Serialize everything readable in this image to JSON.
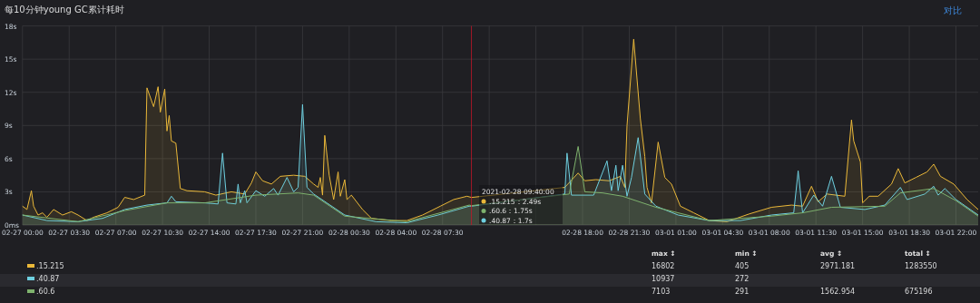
{
  "chart_data": {
    "type": "area",
    "title": "每10分钟young GC累计耗时",
    "xlim": [
      "2021-02-27T00:00",
      "2021-03-01T23:40"
    ],
    "ylim": [
      0,
      18
    ],
    "xticks": [
      {
        "value": "2021-02-27T00:00",
        "label": "02-27 00:00"
      },
      {
        "value": "2021-02-27T03:30",
        "label": "02-27 03:30"
      },
      {
        "value": "2021-02-27T07:00",
        "label": "02-27 07:00"
      },
      {
        "value": "2021-02-27T10:30",
        "label": "02-27 10:30"
      },
      {
        "value": "2021-02-27T14:00",
        "label": "02-27 14:00"
      },
      {
        "value": "2021-02-27T17:30",
        "label": "02-27 17:30"
      },
      {
        "value": "2021-02-27T21:00",
        "label": "02-27 21:00"
      },
      {
        "value": "2021-02-28T00:30",
        "label": "02-28 00:30"
      },
      {
        "value": "2021-02-28T04:00",
        "label": "02-28 04:00"
      },
      {
        "value": "2021-02-28T07:30",
        "label": "02-28 07:30"
      },
      {
        "value": "2021-02-28T11:00",
        "label": null
      },
      {
        "value": "2021-02-28T14:30",
        "label": null
      },
      {
        "value": "2021-02-28T18:00",
        "label": "02-28 18:00"
      },
      {
        "value": "2021-02-28T21:30",
        "label": "02-28 21:30"
      },
      {
        "value": "2021-03-01T01:00",
        "label": "03-01 01:00"
      },
      {
        "value": "2021-03-01T04:30",
        "label": "03-01 04:30"
      },
      {
        "value": "2021-03-01T08:00",
        "label": "03-01 08:00"
      },
      {
        "value": "2021-03-01T11:30",
        "label": "03-01 11:30"
      },
      {
        "value": "2021-03-01T15:00",
        "label": "03-01 15:00"
      },
      {
        "value": "2021-03-01T18:30",
        "label": "03-01 18:30"
      },
      {
        "value": "2021-03-01T22:00",
        "label": "03-01 22:00"
      }
    ],
    "yticks": [
      {
        "value": 0,
        "label": "0ms"
      },
      {
        "value": 3,
        "label": "3s"
      },
      {
        "value": 6,
        "label": "6s"
      },
      {
        "value": 9,
        "label": "9s"
      },
      {
        "value": 12,
        "label": "12s"
      },
      {
        "value": 15,
        "label": "15s"
      },
      {
        "value": 18,
        "label": "18s"
      }
    ],
    "grid": true,
    "legend": "bottom",
    "ref_lines": [
      {
        "axis": "x",
        "value": "2021-02-28T09:40",
        "color": "#c4162a"
      }
    ],
    "series": [
      {
        "name": ".15.215",
        "color": "#eab839",
        "x": [
          "2021-02-27T00:00",
          "2021-02-27T00:20",
          "2021-02-27T00:40",
          "2021-02-27T00:50",
          "2021-02-27T01:10",
          "2021-02-27T01:30",
          "2021-02-27T01:50",
          "2021-02-27T02:20",
          "2021-02-27T03:00",
          "2021-02-27T03:40",
          "2021-02-27T04:10",
          "2021-02-27T04:50",
          "2021-02-27T05:20",
          "2021-02-27T06:20",
          "2021-02-27T07:10",
          "2021-02-27T07:40",
          "2021-02-27T08:20",
          "2021-02-27T09:10",
          "2021-02-27T09:20",
          "2021-02-27T09:50",
          "2021-02-27T10:10",
          "2021-02-27T10:20",
          "2021-02-27T10:40",
          "2021-02-27T10:50",
          "2021-02-27T11:00",
          "2021-02-27T11:10",
          "2021-02-27T11:30",
          "2021-02-27T11:50",
          "2021-02-27T12:20",
          "2021-02-27T13:40",
          "2021-02-27T14:30",
          "2021-02-27T15:40",
          "2021-02-27T16:40",
          "2021-02-27T17:10",
          "2021-02-27T17:30",
          "2021-02-27T18:00",
          "2021-02-27T18:40",
          "2021-02-27T19:20",
          "2021-02-27T20:20",
          "2021-02-27T21:10",
          "2021-02-27T21:50",
          "2021-02-27T22:10",
          "2021-02-27T22:20",
          "2021-02-27T22:30",
          "2021-02-27T22:40",
          "2021-02-27T23:00",
          "2021-02-27T23:20",
          "2021-02-27T23:40",
          "2021-02-27T23:50",
          "2021-02-28T00:10",
          "2021-02-28T00:20",
          "2021-02-28T00:40",
          "2021-02-28T01:30",
          "2021-02-28T02:10",
          "2021-02-28T03:40",
          "2021-02-28T04:50",
          "2021-02-28T06:00",
          "2021-02-28T07:20",
          "2021-02-28T08:20",
          "2021-02-28T09:20",
          "2021-02-28T09:40",
          "2021-02-28T16:40",
          "2021-02-28T17:40",
          "2021-02-28T18:10",
          "2021-02-28T19:00",
          "2021-02-28T20:00",
          "2021-02-28T20:50",
          "2021-02-28T21:10",
          "2021-02-28T21:20",
          "2021-02-28T21:50",
          "2021-02-28T22:20",
          "2021-02-28T22:40",
          "2021-02-28T22:50",
          "2021-02-28T23:10",
          "2021-02-28T23:40",
          "2021-03-01T00:10",
          "2021-03-01T00:40",
          "2021-03-01T01:20",
          "2021-03-01T02:20",
          "2021-03-01T03:30",
          "2021-03-01T04:50",
          "2021-03-01T06:30",
          "2021-03-01T08:10",
          "2021-03-01T09:40",
          "2021-03-01T10:30",
          "2021-03-01T11:10",
          "2021-03-01T11:40",
          "2021-03-01T12:20",
          "2021-03-01T13:40",
          "2021-03-01T14:10",
          "2021-03-01T14:20",
          "2021-03-01T14:50",
          "2021-03-01T15:00",
          "2021-03-01T15:30",
          "2021-03-01T16:10",
          "2021-03-01T17:10",
          "2021-03-01T17:40",
          "2021-03-01T18:10",
          "2021-03-01T19:00",
          "2021-03-01T19:50",
          "2021-03-01T20:20",
          "2021-03-01T20:50",
          "2021-03-01T21:50",
          "2021-03-01T22:50",
          "2021-03-01T23:40"
        ],
        "values": [
          1.7,
          1.4,
          3.1,
          1.7,
          0.9,
          1.1,
          0.7,
          1.4,
          0.9,
          1.2,
          0.9,
          0.4,
          0.7,
          1.1,
          1.6,
          2.5,
          2.3,
          2.7,
          12.4,
          10.7,
          12.5,
          10.2,
          12.3,
          8.5,
          9.9,
          7.6,
          7.4,
          3.3,
          3.1,
          3.0,
          2.7,
          3.0,
          2.8,
          3.8,
          4.8,
          4.0,
          3.7,
          4.4,
          4.5,
          4.4,
          3.7,
          3.4,
          4.3,
          2.7,
          8.1,
          4.5,
          2.3,
          4.8,
          2.6,
          4.1,
          2.3,
          2.7,
          1.4,
          0.6,
          0.4,
          0.4,
          0.9,
          1.7,
          2.3,
          2.6,
          2.49,
          3.4,
          4.7,
          4.0,
          4.1,
          4.0,
          4.4,
          3.4,
          9.0,
          16.8,
          9.6,
          6.2,
          3.4,
          2.0,
          7.5,
          4.3,
          3.7,
          1.7,
          1.1,
          0.4,
          0.3,
          1.0,
          1.6,
          1.8,
          1.7,
          3.5,
          2.1,
          2.8,
          2.6,
          9.5,
          7.6,
          5.7,
          2.0,
          2.6,
          2.6,
          3.7,
          5.1,
          3.8,
          4.3,
          4.8,
          5.5,
          4.4,
          3.7,
          2.3,
          1.4
        ]
      },
      {
        "name": ".40.87",
        "color": "#6ed0e0",
        "x": [
          "2021-02-27T00:00",
          "2021-02-27T01:50",
          "2021-02-27T04:10",
          "2021-02-27T06:00",
          "2021-02-27T07:40",
          "2021-02-27T09:20",
          "2021-02-27T10:50",
          "2021-02-27T11:10",
          "2021-02-27T11:30",
          "2021-02-27T13:40",
          "2021-02-27T14:40",
          "2021-02-27T15:00",
          "2021-02-27T15:20",
          "2021-02-27T16:00",
          "2021-02-27T16:10",
          "2021-02-27T16:20",
          "2021-02-27T16:40",
          "2021-02-27T16:50",
          "2021-02-27T17:30",
          "2021-02-27T18:10",
          "2021-02-27T18:50",
          "2021-02-27T19:10",
          "2021-02-27T19:50",
          "2021-02-27T20:20",
          "2021-02-27T20:40",
          "2021-02-27T21:00",
          "2021-02-27T21:20",
          "2021-02-27T21:50",
          "2021-02-28T00:10",
          "2021-02-28T02:30",
          "2021-02-28T04:50",
          "2021-02-28T07:10",
          "2021-02-28T09:30",
          "2021-02-28T09:40",
          "2021-02-28T16:40",
          "2021-02-28T16:50",
          "2021-02-28T17:10",
          "2021-02-28T18:50",
          "2021-02-28T19:50",
          "2021-02-28T20:10",
          "2021-02-28T20:30",
          "2021-02-28T20:40",
          "2021-02-28T21:00",
          "2021-02-28T21:20",
          "2021-02-28T21:40",
          "2021-02-28T22:10",
          "2021-02-28T22:40",
          "2021-02-28T23:30",
          "2021-03-01T01:10",
          "2021-03-01T03:30",
          "2021-03-01T05:50",
          "2021-03-01T08:10",
          "2021-03-01T09:50",
          "2021-03-01T10:10",
          "2021-03-01T10:30",
          "2021-03-01T11:20",
          "2021-03-01T12:00",
          "2021-03-01T12:40",
          "2021-03-01T13:10",
          "2021-03-01T13:20",
          "2021-03-01T15:10",
          "2021-03-01T16:40",
          "2021-03-01T17:50",
          "2021-03-01T18:20",
          "2021-03-01T19:40",
          "2021-03-01T20:20",
          "2021-03-01T20:40",
          "2021-03-01T21:10",
          "2021-03-01T22:00",
          "2021-03-01T23:40"
        ],
        "values": [
          0.9,
          0.4,
          0.3,
          0.6,
          1.4,
          1.8,
          2.0,
          2.6,
          2.1,
          2.0,
          1.9,
          6.5,
          2.0,
          1.9,
          3.7,
          2.0,
          3.1,
          2.0,
          3.1,
          2.6,
          3.3,
          2.7,
          4.3,
          3.0,
          3.4,
          10.9,
          3.4,
          2.8,
          0.9,
          0.3,
          0.2,
          0.9,
          1.7,
          1.7,
          2.8,
          6.5,
          2.7,
          2.7,
          5.8,
          3.1,
          5.4,
          3.1,
          5.4,
          2.6,
          4.3,
          7.9,
          2.8,
          1.7,
          0.9,
          0.4,
          0.4,
          0.9,
          1.1,
          4.9,
          1.1,
          2.7,
          1.7,
          4.4,
          2.3,
          1.6,
          1.4,
          1.8,
          3.4,
          2.3,
          2.8,
          3.5,
          2.7,
          3.3,
          2.3,
          0.9
        ]
      },
      {
        "name": ".60.6",
        "color": "#7eb26d",
        "x": [
          "2021-02-27T00:00",
          "2021-02-27T04:10",
          "2021-02-27T07:40",
          "2021-02-27T10:50",
          "2021-02-27T13:40",
          "2021-02-27T17:30",
          "2021-02-27T20:40",
          "2021-02-27T21:50",
          "2021-02-28T00:10",
          "2021-02-28T04:50",
          "2021-02-28T09:30",
          "2021-02-28T09:40",
          "2021-02-28T17:00",
          "2021-02-28T17:40",
          "2021-02-28T18:10",
          "2021-02-28T19:30",
          "2021-02-28T21:00",
          "2021-02-28T23:30",
          "2021-03-01T03:30",
          "2021-03-01T08:10",
          "2021-03-01T10:30",
          "2021-03-01T12:40",
          "2021-03-01T16:40",
          "2021-03-01T17:50",
          "2021-03-01T20:20",
          "2021-03-01T22:00",
          "2021-03-01T23:40"
        ],
        "values": [
          0.9,
          0.3,
          1.3,
          2.0,
          2.0,
          2.7,
          2.9,
          2.7,
          0.8,
          0.3,
          1.8,
          1.75,
          2.8,
          7.1,
          3.0,
          2.9,
          2.6,
          1.6,
          0.4,
          0.8,
          1.1,
          1.6,
          1.7,
          2.9,
          3.3,
          2.2,
          0.8
        ]
      }
    ],
    "annotations": [
      "2021-02-28 09:40:00",
      ".15.215：2.49s",
      ".60.6：1.75s",
      ".40.87：1.7s",
      "对比",
      "max ↕",
      "min ↕",
      "avg ↕",
      "total ↕",
      "16802",
      "405",
      "2971.181",
      "1283550",
      "10937",
      "272",
      "7103",
      "291",
      "1562.954",
      "675196"
    ]
  }
}
